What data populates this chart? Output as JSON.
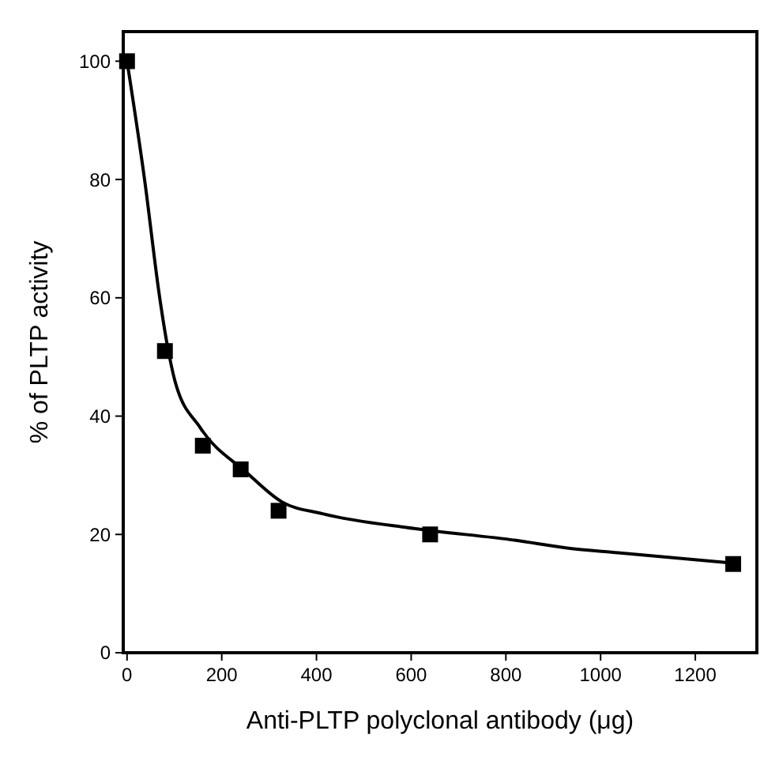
{
  "chart_data": {
    "type": "scatter",
    "xlabel": "Anti-PLTP polyclonal antibody (μg)",
    "ylabel": "% of PLTP activity",
    "xlim": [
      -8,
      1330
    ],
    "ylim": [
      0,
      105
    ],
    "xticks": [
      0,
      200,
      400,
      600,
      800,
      1000,
      1200
    ],
    "yticks": [
      0,
      20,
      40,
      60,
      80,
      100
    ],
    "grid": false,
    "series": [
      {
        "color": "#000000",
        "marker": "square",
        "x": [
          0,
          80,
          160,
          240,
          320,
          640,
          1280
        ],
        "values": [
          100,
          51,
          35,
          31,
          24,
          20,
          15
        ]
      },
      {
        "type": "line",
        "color": "#000000",
        "marker": "none",
        "line_style": "solid",
        "x": [
          0,
          37,
          69,
          85,
          101,
          155,
          252,
          327,
          413,
          606,
          821,
          929,
          1037,
          1273
        ],
        "values": [
          100,
          80,
          60,
          52,
          46,
          38,
          30.5,
          25.5,
          23.5,
          21,
          19,
          17.7,
          16.9,
          15.2
        ]
      }
    ]
  }
}
